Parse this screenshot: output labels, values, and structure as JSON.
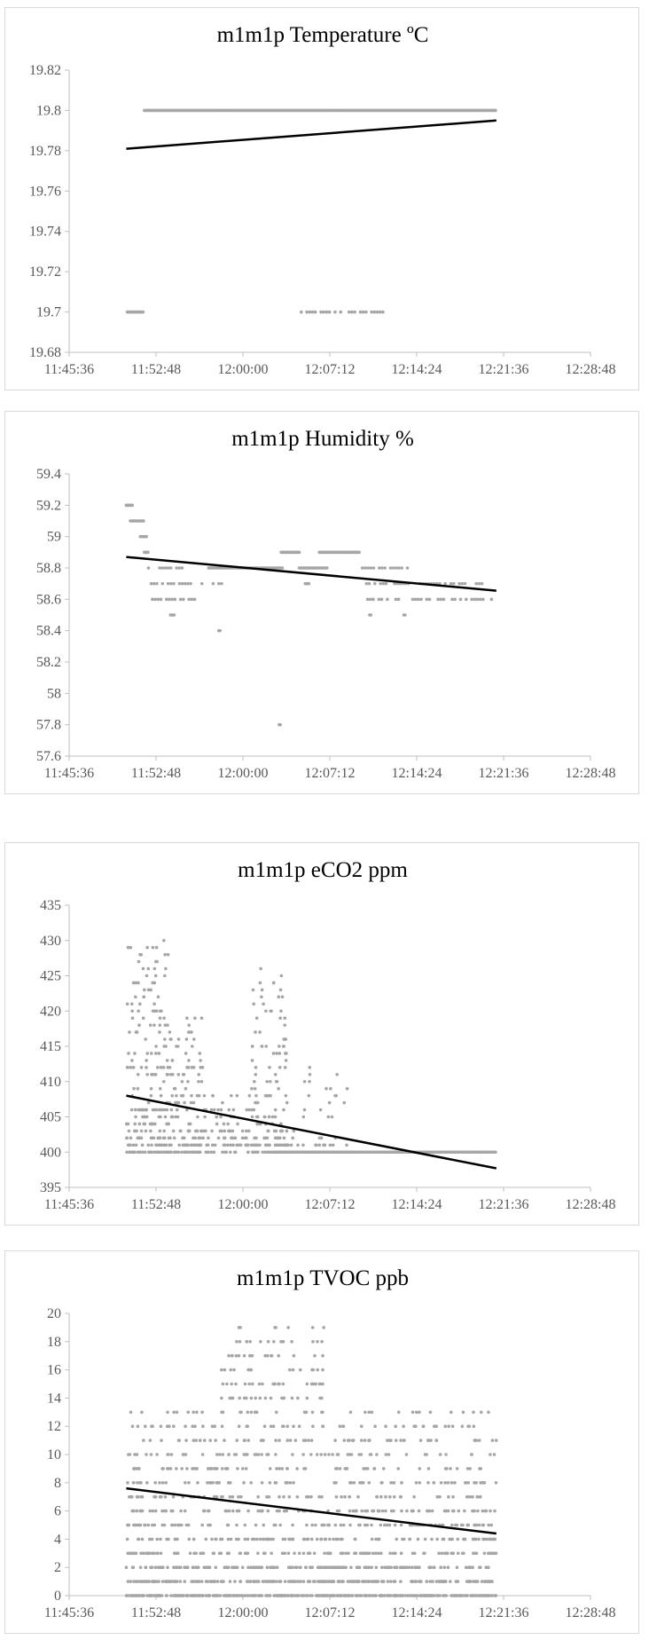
{
  "colors": {
    "points": "#a6a6a6",
    "trend": "#000000",
    "axis": "#bfbfbf",
    "text": "#595959",
    "border": "#d9d9d9"
  },
  "chart_data": [
    {
      "type": "scatter",
      "title": "m1m1p Temperature ºC",
      "xlabel": "",
      "ylabel": "",
      "x_ticks": [
        "11:45:36",
        "11:52:48",
        "12:00:00",
        "12:07:12",
        "12:14:24",
        "12:21:36",
        "12:28:48"
      ],
      "xlim": [
        "11:45:36",
        "12:28:48"
      ],
      "y_ticks": [
        "19.68",
        "19.7",
        "19.72",
        "19.74",
        "19.76",
        "19.78",
        "19.8",
        "19.82"
      ],
      "ylim": [
        19.68,
        19.82
      ],
      "grid": false,
      "trendline": {
        "start": [
          "11:50:20",
          19.781
        ],
        "end": [
          "12:21:00",
          19.795
        ]
      },
      "series_runs": [
        {
          "from": "11:50:25",
          "to": "11:51:45",
          "y": 19.7
        },
        {
          "from": "11:51:50",
          "to": "12:21:00",
          "y": 19.8
        },
        {
          "from": "12:04:50",
          "to": "12:11:40",
          "y": 19.7,
          "sparse": true
        }
      ]
    },
    {
      "type": "scatter",
      "title": "m1m1p Humidity %",
      "xlabel": "",
      "ylabel": "",
      "x_ticks": [
        "11:45:36",
        "11:52:48",
        "12:00:00",
        "12:07:12",
        "12:14:24",
        "12:21:36",
        "12:28:48"
      ],
      "xlim": [
        "11:45:36",
        "12:28:48"
      ],
      "y_ticks": [
        "57.6",
        "57.8",
        "58",
        "58.2",
        "58.4",
        "58.6",
        "58.8",
        "59",
        "59.2",
        "59.4"
      ],
      "ylim": [
        57.6,
        59.4
      ],
      "grid": false,
      "trendline": {
        "start": [
          "11:50:20",
          58.87
        ],
        "end": [
          "12:21:00",
          58.655
        ]
      },
      "series_runs": [
        {
          "from": "11:50:20",
          "to": "11:50:50",
          "y": 59.2
        },
        {
          "from": "11:50:40",
          "to": "11:51:50",
          "y": 59.1
        },
        {
          "from": "11:51:30",
          "to": "11:52:00",
          "y": 59.0
        },
        {
          "from": "11:51:50",
          "to": "11:52:10",
          "y": 58.9
        },
        {
          "from": "11:52:10",
          "to": "11:55:00",
          "y": 58.8,
          "sparse": true
        },
        {
          "from": "11:57:10",
          "to": "12:03:20",
          "y": 58.8
        },
        {
          "from": "11:52:10",
          "to": "11:58:20",
          "y": 58.7,
          "sparse": true
        },
        {
          "from": "11:52:30",
          "to": "11:56:00",
          "y": 58.6,
          "sparse": true
        },
        {
          "from": "11:54:00",
          "to": "11:54:20",
          "y": 58.5
        },
        {
          "from": "11:58:00",
          "to": "11:58:10",
          "y": 58.4
        },
        {
          "from": "12:03:00",
          "to": "12:03:10",
          "y": 57.8
        },
        {
          "from": "12:03:10",
          "to": "12:04:40",
          "y": 58.9
        },
        {
          "from": "12:04:40",
          "to": "12:07:00",
          "y": 58.8
        },
        {
          "from": "12:05:10",
          "to": "12:05:30",
          "y": 58.7
        },
        {
          "from": "12:06:20",
          "to": "12:09:40",
          "y": 58.9
        },
        {
          "from": "12:09:40",
          "to": "12:14:00",
          "y": 58.8,
          "sparse": true
        },
        {
          "from": "12:10:00",
          "to": "12:20:00",
          "y": 58.7,
          "sparse": true
        },
        {
          "from": "12:10:20",
          "to": "12:21:00",
          "y": 58.6,
          "sparse": true
        },
        {
          "from": "12:10:30",
          "to": "12:10:40",
          "y": 58.5
        },
        {
          "from": "12:13:20",
          "to": "12:13:30",
          "y": 58.5
        }
      ]
    },
    {
      "type": "scatter",
      "title": "m1m1p eCO2 ppm",
      "xlabel": "",
      "ylabel": "",
      "x_ticks": [
        "11:45:36",
        "11:52:48",
        "12:00:00",
        "12:07:12",
        "12:14:24",
        "12:21:36",
        "12:28:48"
      ],
      "xlim": [
        "11:45:36",
        "12:28:48"
      ],
      "y_ticks": [
        "395",
        "400",
        "405",
        "410",
        "415",
        "420",
        "425",
        "430",
        "435"
      ],
      "ylim": [
        395,
        435
      ],
      "grid": false,
      "trendline": {
        "start": [
          "11:50:20",
          408
        ],
        "end": [
          "12:21:00",
          397.7
        ]
      },
      "noisy_segments": [
        {
          "from": "11:50:20",
          "to": "11:53:50",
          "min": 400,
          "max": 430,
          "count": 220,
          "step": 1
        },
        {
          "from": "11:53:50",
          "to": "11:56:40",
          "min": 400,
          "max": 421,
          "count": 140,
          "step": 1
        },
        {
          "from": "11:56:40",
          "to": "12:00:40",
          "min": 400,
          "max": 409,
          "count": 90,
          "step": 1
        },
        {
          "from": "12:00:40",
          "to": "12:03:40",
          "min": 400,
          "max": 426,
          "count": 160,
          "step": 1
        },
        {
          "from": "12:03:40",
          "to": "12:08:40",
          "min": 400,
          "max": 414,
          "count": 40,
          "step": 1
        }
      ],
      "series_runs": [
        {
          "from": "12:03:20",
          "to": "12:21:00",
          "y": 400
        }
      ]
    },
    {
      "type": "scatter",
      "title": "m1m1p TVOC ppb",
      "xlabel": "",
      "ylabel": "",
      "x_ticks": [
        "11:45:36",
        "11:52:48",
        "12:00:00",
        "12:07:12",
        "12:14:24",
        "12:21:36",
        "12:28:48"
      ],
      "xlim": [
        "11:45:36",
        "12:28:48"
      ],
      "y_ticks": [
        "0",
        "2",
        "4",
        "6",
        "8",
        "10",
        "12",
        "14",
        "16",
        "18",
        "20"
      ],
      "ylim": [
        0,
        20
      ],
      "grid": false,
      "trendline": {
        "start": [
          "11:50:20",
          7.6
        ],
        "end": [
          "12:21:00",
          4.4
        ]
      },
      "noisy_segments": [
        {
          "from": "11:50:20",
          "to": "11:58:00",
          "min": 0,
          "max": 13,
          "count": 420,
          "step": 1
        },
        {
          "from": "11:58:00",
          "to": "12:07:00",
          "min": 0,
          "max": 19,
          "count": 520,
          "step": 1
        },
        {
          "from": "12:07:00",
          "to": "12:21:00",
          "min": 0,
          "max": 13,
          "count": 700,
          "step": 1
        }
      ],
      "series_runs": []
    }
  ]
}
